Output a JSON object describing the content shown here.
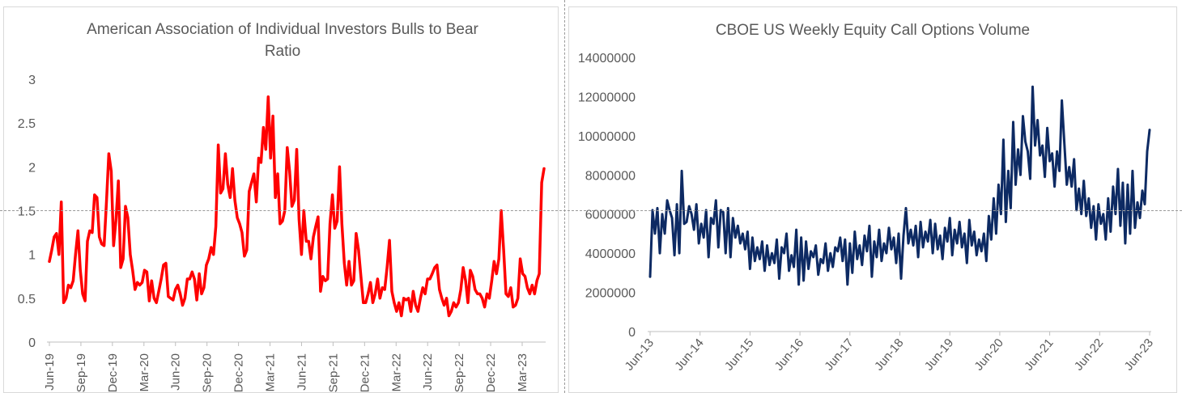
{
  "charts": {
    "left": {
      "title_line1": "American Association of Individual Investors Bulls to Bear",
      "title_line2": "Ratio"
    },
    "right": {
      "title": "CBOE US Weekly Equity Call Options Volume"
    }
  },
  "chart_data": [
    {
      "type": "line",
      "title": "American Association of Individual Investors Bulls to Bear Ratio",
      "xlabel": "",
      "ylabel": "",
      "ylim": [
        0,
        3
      ],
      "yticks": [
        "0",
        "0.5",
        "1",
        "1.5",
        "2",
        "2.5",
        "3"
      ],
      "xticks": [
        "Jun-19",
        "Sep-19",
        "Dec-19",
        "Mar-20",
        "Jun-20",
        "Sep-20",
        "Dec-20",
        "Mar-21",
        "Jun-21",
        "Sep-21",
        "Dec-21",
        "Mar-22",
        "Jun-22",
        "Sep-22",
        "Dec-22",
        "Mar-23"
      ],
      "color": "#ff0000",
      "grid": false,
      "series": [
        {
          "values": [
            0.92,
            1.05,
            1.2,
            1.24,
            1.0,
            1.6,
            0.45,
            0.5,
            0.65,
            0.62,
            0.7,
            1.0,
            1.27,
            0.82,
            0.55,
            0.47,
            1.15,
            1.27,
            1.25,
            1.68,
            1.65,
            1.2,
            1.12,
            1.1,
            1.6,
            2.15,
            1.95,
            1.1,
            1.4,
            1.84,
            0.85,
            0.95,
            1.55,
            1.42,
            1.0,
            0.82,
            0.6,
            0.68,
            0.65,
            0.68,
            0.82,
            0.8,
            0.47,
            0.7,
            0.5,
            0.45,
            0.58,
            0.72,
            0.88,
            0.9,
            0.52,
            0.5,
            0.48,
            0.6,
            0.65,
            0.55,
            0.42,
            0.5,
            0.72,
            0.72,
            0.8,
            0.72,
            0.48,
            0.78,
            0.55,
            0.62,
            0.88,
            0.95,
            1.08,
            1.0,
            1.32,
            2.25,
            1.7,
            1.75,
            2.15,
            1.8,
            1.65,
            1.98,
            1.62,
            1.42,
            1.35,
            1.25,
            0.98,
            1.05,
            1.72,
            1.82,
            1.92,
            1.6,
            2.1,
            2.05,
            2.45,
            2.2,
            2.8,
            2.1,
            2.58,
            1.65,
            1.92,
            1.35,
            1.38,
            1.5,
            2.22,
            1.95,
            1.55,
            1.62,
            2.2,
            1.4,
            1.0,
            1.5,
            1.15,
            1.15,
            0.95,
            1.2,
            1.32,
            1.43,
            0.58,
            0.75,
            0.7,
            0.72,
            1.35,
            1.68,
            1.3,
            1.38,
            2.0,
            1.35,
            0.9,
            0.65,
            0.92,
            0.65,
            0.7,
            1.24,
            1.05,
            0.75,
            0.45,
            0.45,
            0.55,
            0.68,
            0.45,
            0.55,
            0.72,
            0.5,
            0.62,
            0.6,
            0.85,
            1.16,
            0.58,
            0.45,
            0.35,
            0.45,
            0.3,
            0.5,
            0.48,
            0.5,
            0.35,
            0.58,
            0.42,
            0.35,
            0.5,
            0.62,
            0.55,
            0.72,
            0.72,
            0.78,
            0.85,
            0.88,
            0.6,
            0.5,
            0.42,
            0.5,
            0.3,
            0.35,
            0.45,
            0.4,
            0.45,
            0.6,
            0.85,
            0.7,
            0.45,
            0.82,
            0.75,
            0.6,
            0.55,
            0.55,
            0.5,
            0.4,
            0.55,
            0.5,
            0.7,
            0.92,
            0.78,
            0.95,
            1.5,
            1.05,
            0.55,
            0.52,
            0.62,
            0.4,
            0.42,
            0.5,
            0.95,
            0.78,
            0.75,
            0.62,
            0.55,
            0.65,
            0.55,
            0.7,
            0.78,
            1.82,
            1.98
          ]
        }
      ]
    },
    {
      "type": "line",
      "title": "CBOE US Weekly Equity Call Options Volume",
      "xlabel": "",
      "ylabel": "",
      "ylim": [
        0,
        14000000
      ],
      "yticks": [
        "0",
        "2000000",
        "4000000",
        "6000000",
        "8000000",
        "10000000",
        "12000000",
        "14000000"
      ],
      "xticks": [
        "Jun-13",
        "Jun-14",
        "Jun-15",
        "Jun-16",
        "Jun-17",
        "Jun-18",
        "Jun-19",
        "Jun-20",
        "Jun-21",
        "Jun-22",
        "Jun-23"
      ],
      "color": "#0d2a63",
      "grid": false,
      "series": [
        {
          "values": [
            2800000,
            6200000,
            5000000,
            6300000,
            4000000,
            6000000,
            5000000,
            6700000,
            6200000,
            5800000,
            3900000,
            6500000,
            4000000,
            8200000,
            5500000,
            5600000,
            6400000,
            6000000,
            5200000,
            6500000,
            4500000,
            5500000,
            4800000,
            6200000,
            3800000,
            5800000,
            5500000,
            6700000,
            4300000,
            6200000,
            6100000,
            4000000,
            6300000,
            3800000,
            5800000,
            4800000,
            5400000,
            4500000,
            5000000,
            4200000,
            5100000,
            3200000,
            4800000,
            3600000,
            4300000,
            3700000,
            4600000,
            3100000,
            4400000,
            3400000,
            4000000,
            3500000,
            4700000,
            2700000,
            4300000,
            4000000,
            5000000,
            3100000,
            3900000,
            3300000,
            5200000,
            2400000,
            4800000,
            2600000,
            4600000,
            3200000,
            4100000,
            3800000,
            4400000,
            2900000,
            3700000,
            3500000,
            4500000,
            3100000,
            4000000,
            3300000,
            4300000,
            4100000,
            4800000,
            3600000,
            4700000,
            2400000,
            4500000,
            3000000,
            5100000,
            3700000,
            4400000,
            3400000,
            4900000,
            4100000,
            5400000,
            2800000,
            4600000,
            3800000,
            5200000,
            3600000,
            4500000,
            4000000,
            5300000,
            4200000,
            4800000,
            3500000,
            5000000,
            2700000,
            4900000,
            6300000,
            4500000,
            5200000,
            4400000,
            5400000,
            3800000,
            5600000,
            4300000,
            5100000,
            4600000,
            5700000,
            4000000,
            5500000,
            4200000,
            4900000,
            3700000,
            5300000,
            4600000,
            5800000,
            3900000,
            5200000,
            4500000,
            5600000,
            4300000,
            5000000,
            3500000,
            5700000,
            4400000,
            5100000,
            3900000,
            4700000,
            4100000,
            5000000,
            3600000,
            5900000,
            4700000,
            6800000,
            5000000,
            7500000,
            6000000,
            9800000,
            5600000,
            8200000,
            6300000,
            10700000,
            7500000,
            9300000,
            8000000,
            11000000,
            9700000,
            9200000,
            7800000,
            12500000,
            9500000,
            10800000,
            9000000,
            9500000,
            7900000,
            10400000,
            8700000,
            9100000,
            7400000,
            9200000,
            8200000,
            11800000,
            9600000,
            7500000,
            8400000,
            7400000,
            8800000,
            6200000,
            7300000,
            6000000,
            7700000,
            5900000,
            6800000,
            5300000,
            6400000,
            4700000,
            6500000,
            5500000,
            6000000,
            4700000,
            6800000,
            5100000,
            7400000,
            6000000,
            8300000,
            5400000,
            7600000,
            4500000,
            7500000,
            5000000,
            8200000,
            5300000,
            6600000,
            5800000,
            7200000,
            6500000,
            9200000,
            10300000
          ]
        }
      ]
    }
  ]
}
